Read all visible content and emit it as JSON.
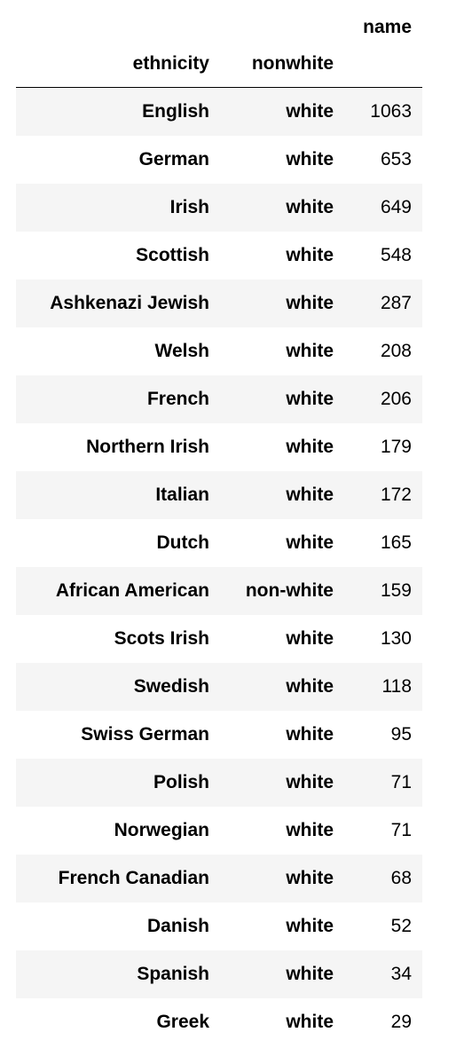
{
  "table": {
    "header_top": {
      "name": "name"
    },
    "header_index": {
      "ethnicity": "ethnicity",
      "nonwhite": "nonwhite"
    },
    "rows": [
      {
        "ethnicity": "English",
        "nonwhite": "white",
        "name": "1063"
      },
      {
        "ethnicity": "German",
        "nonwhite": "white",
        "name": "653"
      },
      {
        "ethnicity": "Irish",
        "nonwhite": "white",
        "name": "649"
      },
      {
        "ethnicity": "Scottish",
        "nonwhite": "white",
        "name": "548"
      },
      {
        "ethnicity": "Ashkenazi Jewish",
        "nonwhite": "white",
        "name": "287"
      },
      {
        "ethnicity": "Welsh",
        "nonwhite": "white",
        "name": "208"
      },
      {
        "ethnicity": "French",
        "nonwhite": "white",
        "name": "206"
      },
      {
        "ethnicity": "Northern Irish",
        "nonwhite": "white",
        "name": "179"
      },
      {
        "ethnicity": "Italian",
        "nonwhite": "white",
        "name": "172"
      },
      {
        "ethnicity": "Dutch",
        "nonwhite": "white",
        "name": "165"
      },
      {
        "ethnicity": "African American",
        "nonwhite": "non-white",
        "name": "159"
      },
      {
        "ethnicity": "Scots Irish",
        "nonwhite": "white",
        "name": "130"
      },
      {
        "ethnicity": "Swedish",
        "nonwhite": "white",
        "name": "118"
      },
      {
        "ethnicity": "Swiss German",
        "nonwhite": "white",
        "name": "95"
      },
      {
        "ethnicity": "Polish",
        "nonwhite": "white",
        "name": "71"
      },
      {
        "ethnicity": "Norwegian",
        "nonwhite": "white",
        "name": "71"
      },
      {
        "ethnicity": "French Canadian",
        "nonwhite": "white",
        "name": "68"
      },
      {
        "ethnicity": "Danish",
        "nonwhite": "white",
        "name": "52"
      },
      {
        "ethnicity": "Spanish",
        "nonwhite": "white",
        "name": "34"
      },
      {
        "ethnicity": "Greek",
        "nonwhite": "white",
        "name": "29"
      }
    ]
  },
  "colors": {
    "stripe": "#f5f5f5",
    "text": "#000000",
    "rule": "#000000"
  }
}
